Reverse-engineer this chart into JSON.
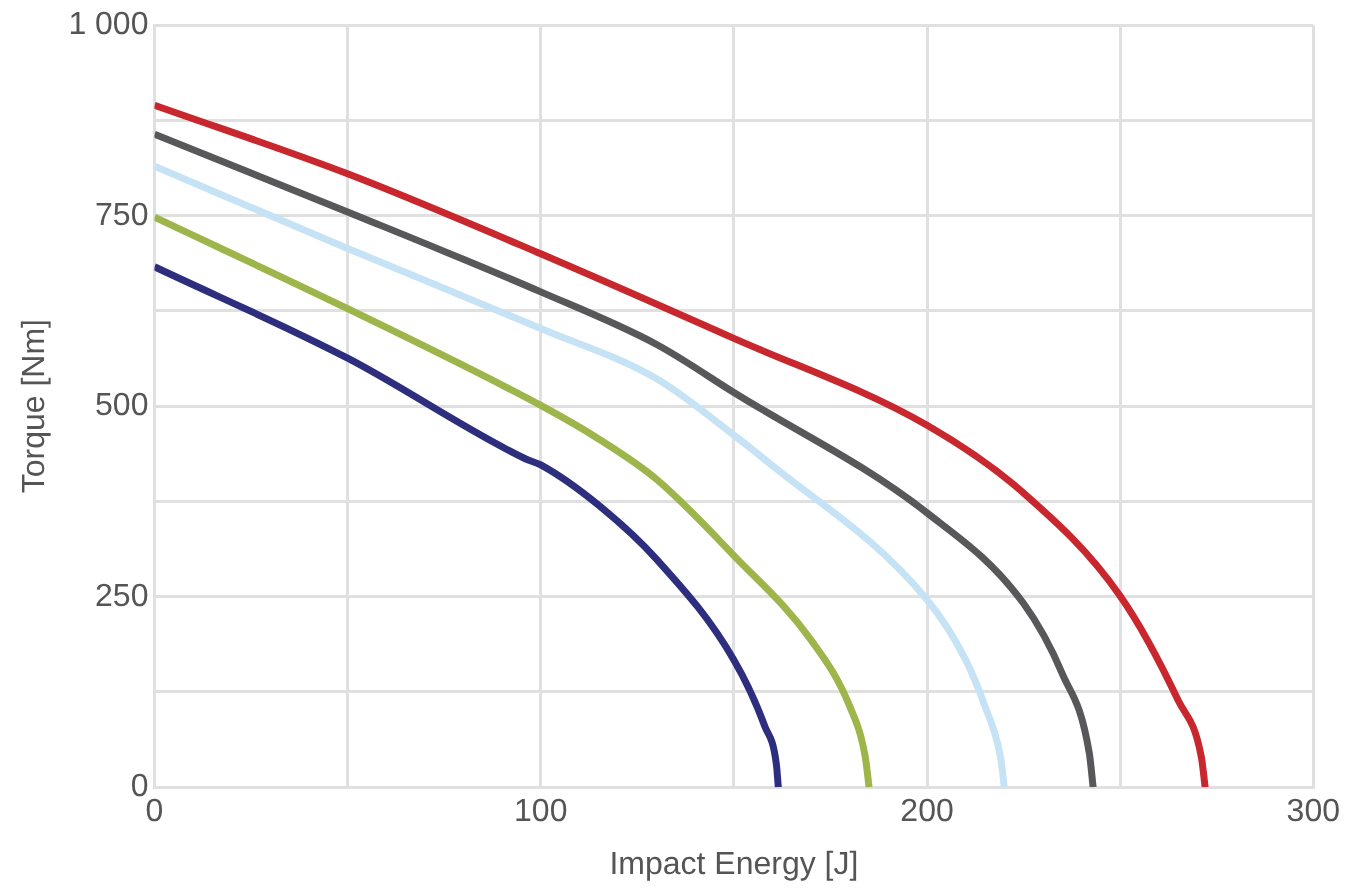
{
  "chart_data": {
    "type": "line",
    "xlabel": "Impact Energy [J]",
    "ylabel": "Torque [Nm]",
    "xlim": [
      0,
      300
    ],
    "ylim": [
      0,
      1000
    ],
    "xticks": [
      0,
      {
        "value": 50,
        "label": null
      },
      100,
      {
        "value": 150,
        "label": null
      },
      200,
      {
        "value": 250,
        "label": null
      },
      300
    ],
    "yticks": [
      0,
      {
        "value": 125,
        "label": null
      },
      250,
      {
        "value": 375,
        "label": null
      },
      500,
      {
        "value": 625,
        "label": null
      },
      750,
      {
        "value": 875,
        "label": null
      },
      {
        "value": 1000,
        "label": "1 000"
      }
    ],
    "grid": true,
    "legend": false,
    "marker": "none",
    "line_style": "solid",
    "series": [
      {
        "color": "#c8282d",
        "x": [
          0,
          50,
          100,
          150,
          200,
          225,
          250,
          265,
          271,
          272
        ],
        "values": [
          895,
          805,
          700,
          589,
          475,
          386,
          251,
          114,
          40,
          0
        ]
      },
      {
        "color": "#58585a",
        "x": [
          0,
          50,
          100,
          130,
          150,
          200,
          225,
          235,
          242,
          243
        ],
        "values": [
          857,
          755,
          650,
          581,
          518,
          360,
          241,
          149,
          45,
          0
        ]
      },
      {
        "color": "#c5e3f5",
        "x": [
          0,
          50,
          100,
          130,
          150,
          158,
          200,
          210,
          215,
          219,
          220
        ],
        "values": [
          815,
          707,
          602,
          536,
          462,
          430,
          246,
          167,
          106,
          40,
          0
        ]
      },
      {
        "color": "#9db54a",
        "x": [
          0,
          50,
          100,
          115,
          130,
          150,
          170,
          180,
          184,
          185
        ],
        "values": [
          748,
          628,
          501,
          457,
          404,
          304,
          193,
          106,
          40,
          0
        ]
      },
      {
        "color": "#2e2e7e",
        "x": [
          0,
          50,
          96,
          100,
          115,
          130,
          150,
          158,
          161,
          161.5
        ],
        "values": [
          683,
          563,
          431,
          423,
          370,
          299,
          167,
          80,
          30,
          0
        ]
      }
    ]
  }
}
